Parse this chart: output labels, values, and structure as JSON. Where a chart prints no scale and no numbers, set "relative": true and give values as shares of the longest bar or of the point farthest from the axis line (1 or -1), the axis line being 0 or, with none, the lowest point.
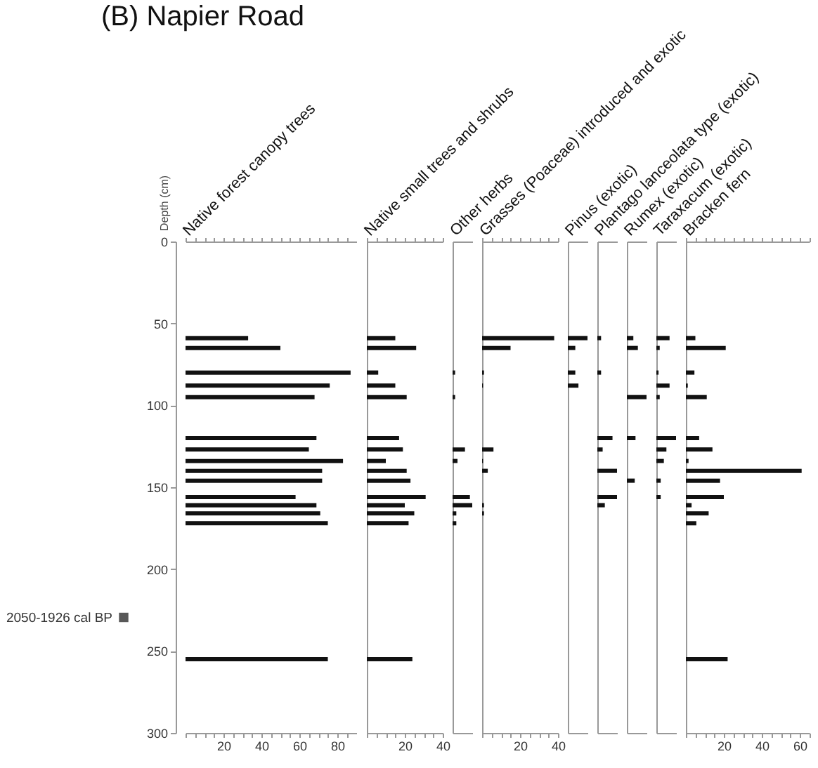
{
  "chart_data": [
    {
      "type": "bar",
      "orientation": "horizontal",
      "title": "(B) Napier Road",
      "xlabel": "Native forest canopy trees",
      "ylabel": "Depth (cm)",
      "x": [
        59,
        65,
        80,
        88,
        95,
        120,
        127,
        134,
        140,
        146,
        156,
        161,
        166,
        172,
        255
      ],
      "xlim": [
        0,
        90
      ],
      "xticks": [
        {
          "value": 0,
          "label": null
        },
        {
          "value": 5,
          "label": null
        },
        {
          "value": 10,
          "label": null
        },
        {
          "value": 15,
          "label": null
        },
        20,
        {
          "value": 25,
          "label": null
        },
        {
          "value": 30,
          "label": null
        },
        {
          "value": 35,
          "label": null
        },
        40,
        {
          "value": 45,
          "label": null
        },
        {
          "value": 50,
          "label": null
        },
        {
          "value": 55,
          "label": null
        },
        60,
        {
          "value": 65,
          "label": null
        },
        {
          "value": 70,
          "label": null
        },
        {
          "value": 75,
          "label": null
        },
        80,
        {
          "value": 85,
          "label": null
        }
      ],
      "ylim": [
        300,
        0
      ],
      "yticks": [
        0,
        50,
        100,
        150,
        200,
        250,
        300
      ],
      "annotations": [
        "2050-1926 cal BP"
      ],
      "series": [
        {
          "color": "#111111",
          "values": [
            33,
            50,
            87,
            76,
            68,
            69,
            65,
            83,
            72,
            72,
            58,
            69,
            71,
            75,
            75
          ]
        }
      ]
    },
    {
      "type": "bar",
      "orientation": "horizontal",
      "xlabel": "Native small trees and shrubs",
      "x": [
        59,
        65,
        80,
        88,
        95,
        120,
        127,
        134,
        140,
        146,
        156,
        161,
        166,
        172,
        255
      ],
      "xlim": [
        0,
        40
      ],
      "xticks": [
        {
          "value": 0,
          "label": null
        },
        {
          "value": 5,
          "label": null
        },
        {
          "value": 10,
          "label": null
        },
        {
          "value": 15,
          "label": null
        },
        20,
        {
          "value": 25,
          "label": null
        },
        {
          "value": 30,
          "label": null
        },
        {
          "value": 35,
          "label": null
        },
        40
      ],
      "ylim": [
        300,
        0
      ],
      "tick_labels": "x",
      "series": [
        {
          "color": "#111111",
          "values": [
            15,
            26,
            6,
            15,
            21,
            17,
            19,
            10,
            21,
            23,
            31,
            20,
            25,
            22,
            24
          ]
        }
      ]
    },
    {
      "type": "bar",
      "orientation": "horizontal",
      "relative": true,
      "xlabel": "Other herbs",
      "x": [
        80,
        95,
        127,
        134,
        156,
        161,
        166,
        172
      ],
      "ylim": [
        300,
        0
      ],
      "tick_labels": false,
      "series": [
        {
          "color": "#111111",
          "values": [
            0.13,
            0.13,
            0.63,
            0.25,
            0.88,
            1,
            0.19,
            0.19
          ]
        }
      ]
    },
    {
      "type": "bar",
      "orientation": "horizontal",
      "xlabel": "Grasses (Poaceae) introduced and exotic",
      "x": [
        59,
        65,
        80,
        88,
        127,
        134,
        140,
        161,
        166
      ],
      "xlim": [
        0,
        40
      ],
      "xticks": [
        {
          "value": 0,
          "label": null
        },
        {
          "value": 5,
          "label": null
        },
        {
          "value": 10,
          "label": null
        },
        {
          "value": 15,
          "label": null
        },
        20,
        {
          "value": 25,
          "label": null
        },
        {
          "value": 30,
          "label": null
        },
        {
          "value": 35,
          "label": null
        },
        40
      ],
      "ylim": [
        300,
        0
      ],
      "tick_labels": "x",
      "series": [
        {
          "color": "#111111",
          "values": [
            38,
            15,
            1,
            0.5,
            6,
            0.5,
            3,
            1,
            1
          ]
        }
      ]
    },
    {
      "type": "bar",
      "orientation": "horizontal",
      "relative": true,
      "xlabel": "Pinus (exotic)",
      "x": [
        59,
        65,
        80,
        88
      ],
      "ylim": [
        300,
        0
      ],
      "tick_labels": false,
      "series": [
        {
          "color": "#111111",
          "values": [
            1,
            0.38,
            0.38,
            0.54
          ]
        }
      ]
    },
    {
      "type": "bar",
      "orientation": "horizontal",
      "relative": true,
      "xlabel": "Plantago lanceolata type (exotic)",
      "x": [
        59,
        80,
        120,
        127,
        140,
        156,
        161
      ],
      "ylim": [
        300,
        0
      ],
      "tick_labels": false,
      "series": [
        {
          "color": "#111111",
          "values": [
            0.19,
            0.19,
            0.77,
            0.27,
            1,
            1,
            0.38
          ]
        }
      ]
    },
    {
      "type": "bar",
      "orientation": "horizontal",
      "relative": true,
      "xlabel": "Rumex (exotic)",
      "x": [
        59,
        65,
        95,
        120,
        146
      ],
      "ylim": [
        300,
        0
      ],
      "tick_labels": false,
      "series": [
        {
          "color": "#111111",
          "values": [
            0.33,
            0.56,
            1,
            0.44,
            0.4
          ]
        }
      ]
    },
    {
      "type": "bar",
      "orientation": "horizontal",
      "relative": true,
      "xlabel": "Taraxacum (exotic)",
      "x": [
        59,
        65,
        80,
        88,
        95,
        120,
        127,
        134,
        146,
        156
      ],
      "ylim": [
        300,
        0
      ],
      "tick_labels": false,
      "series": [
        {
          "color": "#111111",
          "values": [
            0.67,
            0.17,
            0.11,
            0.67,
            0.17,
            1,
            0.51,
            0.38,
            0.22,
            0.22
          ]
        }
      ]
    },
    {
      "type": "bar",
      "orientation": "horizontal",
      "xlabel": "Bracken fern",
      "x": [
        59,
        65,
        80,
        88,
        95,
        120,
        127,
        134,
        140,
        146,
        156,
        161,
        166,
        172,
        255
      ],
      "xlim": [
        0,
        65
      ],
      "xticks": [
        {
          "value": 0,
          "label": null
        },
        {
          "value": 5,
          "label": null
        },
        {
          "value": 10,
          "label": null
        },
        {
          "value": 15,
          "label": null
        },
        20,
        {
          "value": 25,
          "label": null
        },
        {
          "value": 30,
          "label": null
        },
        {
          "value": 35,
          "label": null
        },
        40,
        {
          "value": 45,
          "label": null
        },
        {
          "value": 50,
          "label": null
        },
        {
          "value": 55,
          "label": null
        },
        60,
        {
          "value": 65,
          "label": null
        }
      ],
      "ylim": [
        300,
        0
      ],
      "tick_labels": "x",
      "series": [
        {
          "color": "#111111",
          "values": [
            5,
            21,
            4.5,
            1,
            11,
            7,
            14,
            1.4,
            61,
            18,
            20,
            3,
            12,
            5.5,
            22
          ]
        }
      ]
    }
  ]
}
